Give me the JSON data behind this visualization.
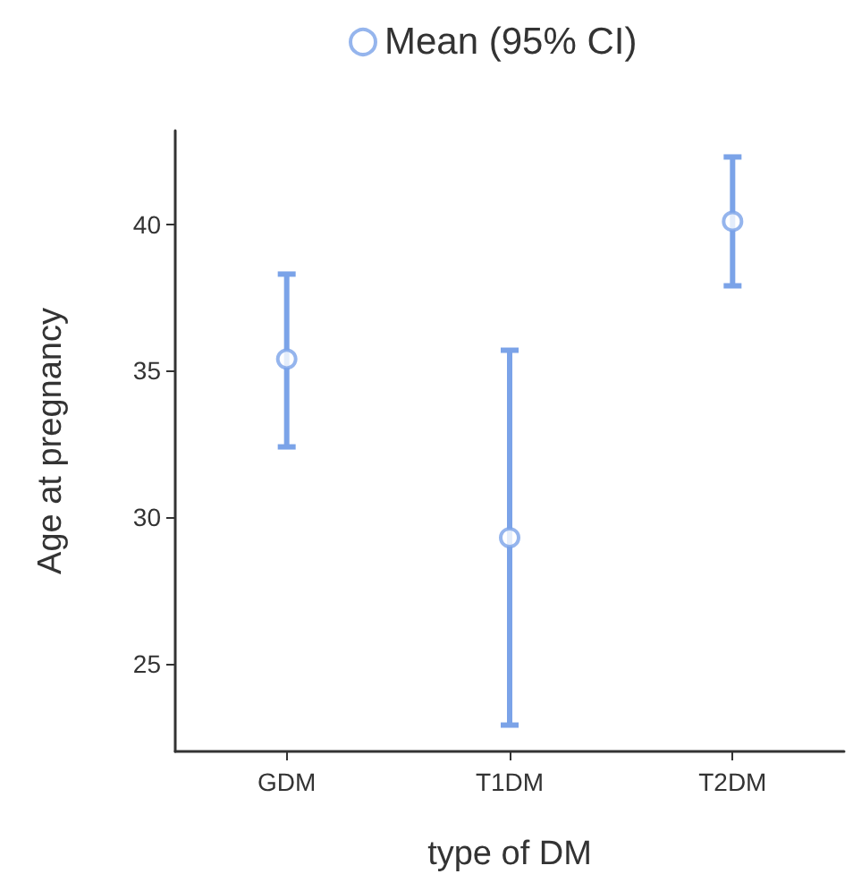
{
  "chart_data": {
    "type": "scatter",
    "xlabel": "type of DM",
    "ylabel": "Age at pregnancy",
    "categories": [
      "GDM",
      "T1DM",
      "T2DM"
    ],
    "series": [
      {
        "name": "Mean (95% CI)",
        "color": "#7ba3e8",
        "values": [
          35.4,
          29.3,
          40.1
        ],
        "errors": [
          [
            32.4,
            38.3
          ],
          [
            22.9,
            35.7
          ],
          [
            37.9,
            42.3
          ]
        ]
      }
    ],
    "ylim": [
      22,
      43.2
    ],
    "yticks": [
      25,
      30,
      35,
      40
    ],
    "grid": false,
    "legend": "top",
    "marker": "circle"
  }
}
